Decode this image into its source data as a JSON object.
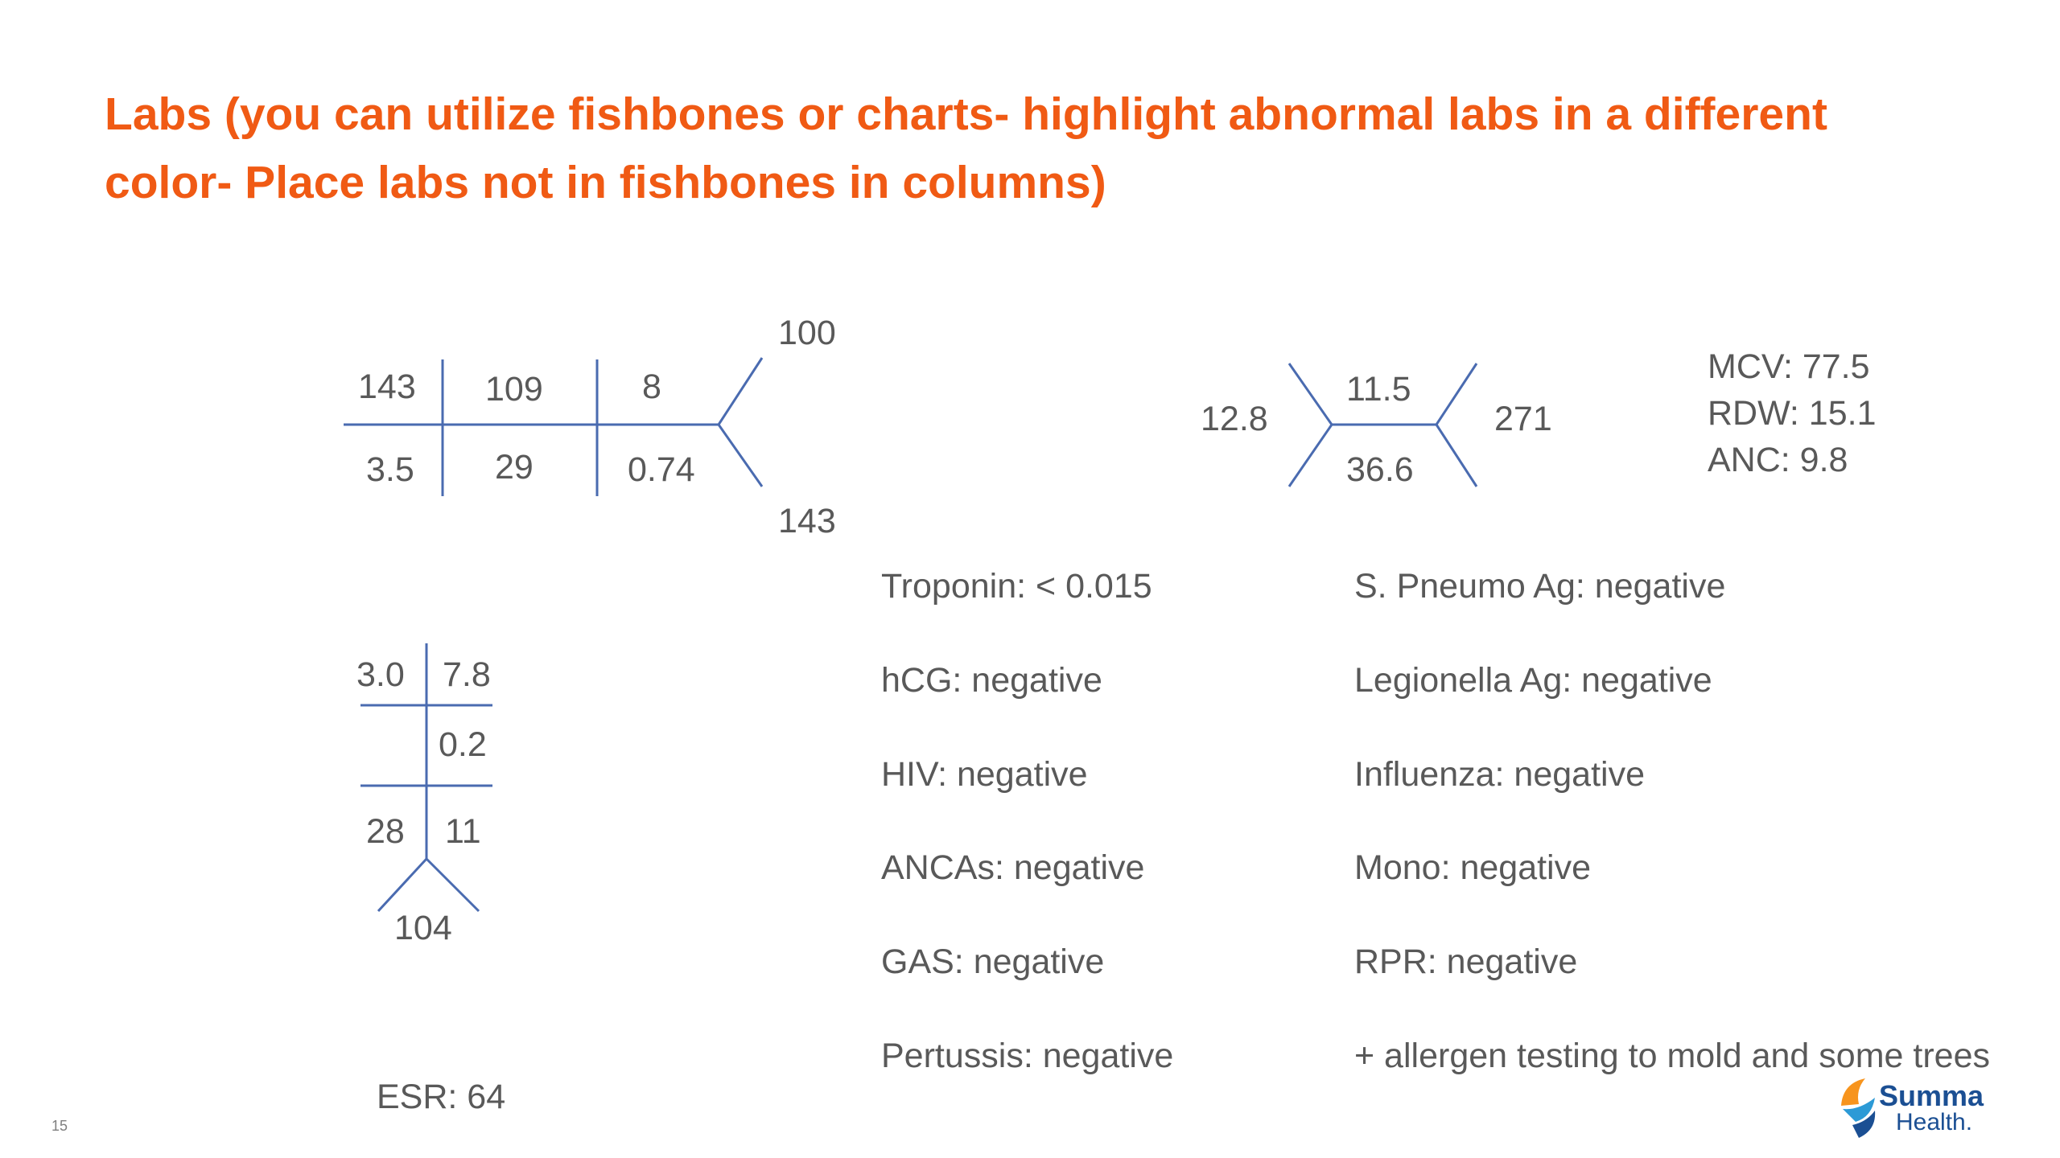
{
  "title": "Labs (you can utilize fishbones or charts- highlight abnormal labs in a different color- Place labs not in fishbones in columns)",
  "bmp": {
    "na": "143",
    "cl": "109",
    "bun": "8",
    "k": "3.5",
    "co2": "29",
    "cr": "0.74",
    "glu": "100",
    "glu2": "143"
  },
  "cbc": {
    "wbc": "12.8",
    "hgb": "11.5",
    "hct": "36.6",
    "plt": "271"
  },
  "cbc_extra": [
    "MCV: 77.5",
    "RDW: 15.1",
    "ANC: 9.8"
  ],
  "lft": {
    "tl": "3.0",
    "tr": "7.8",
    "mid": "0.2",
    "bl": "28",
    "br": "11",
    "bottom": "104"
  },
  "esr": "ESR: 64",
  "col1": [
    "Troponin: < 0.015",
    "hCG: negative",
    "HIV: negative",
    "ANCAs: negative",
    "GAS: negative",
    "Pertussis: negative"
  ],
  "col2": [
    "S. Pneumo Ag: negative",
    "Legionella Ag: negative",
    "Influenza: negative",
    "Mono: negative",
    "RPR: negative",
    "+ allergen testing to mold and some trees"
  ],
  "slide_number": "15",
  "logo": {
    "line1": "Summa",
    "line2": "Health."
  },
  "colors": {
    "title": "#f05a14",
    "line": "#4a6bb0",
    "text": "#595959",
    "logo_blue": "#1b4f93",
    "logo_orange": "#f7941d"
  }
}
